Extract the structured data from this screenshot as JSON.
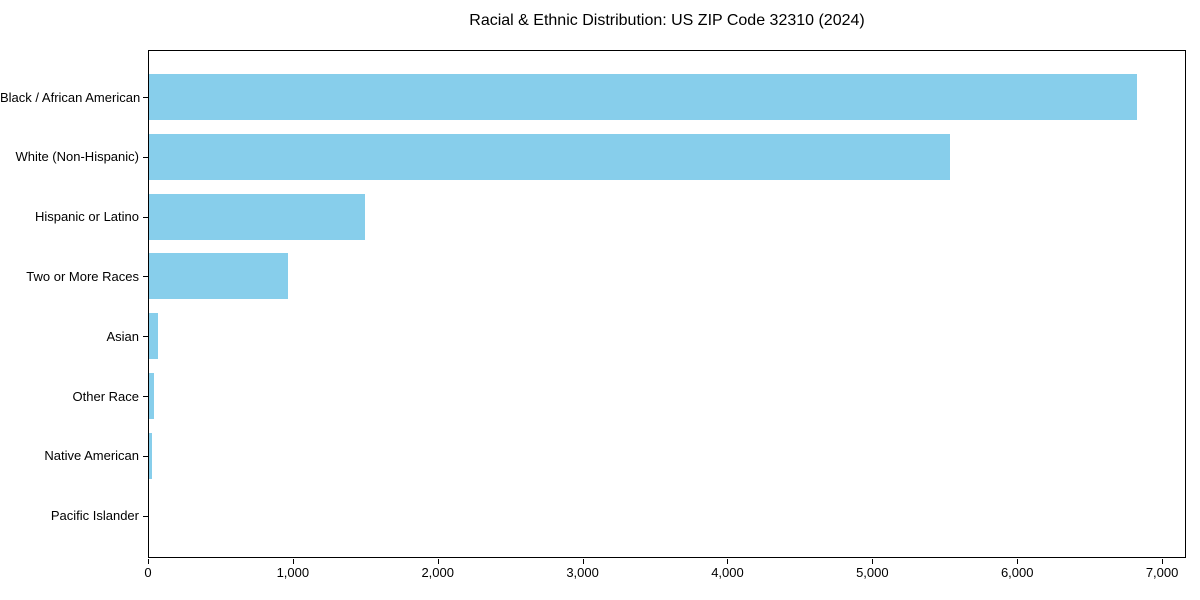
{
  "chart_data": {
    "type": "bar",
    "orientation": "horizontal",
    "title": "Racial & Ethnic Distribution: US ZIP Code 32310 (2024)",
    "categories": [
      "Black / African American",
      "White (Non-Hispanic)",
      "Hispanic or Latino",
      "Two or More Races",
      "Asian",
      "Other Race",
      "Native American",
      "Pacific Islander"
    ],
    "values": [
      6820,
      5530,
      1490,
      960,
      65,
      35,
      20,
      0
    ],
    "xlabel": "",
    "ylabel": "",
    "xlim": [
      0,
      7165
    ],
    "xticks": [
      0,
      1000,
      2000,
      3000,
      4000,
      5000,
      6000,
      7000
    ],
    "xtick_labels": [
      "0",
      "1,000",
      "2,000",
      "3,000",
      "4,000",
      "5,000",
      "6,000",
      "7,000"
    ],
    "bar_color": "#87CEEB",
    "grid": false,
    "legend": null
  }
}
